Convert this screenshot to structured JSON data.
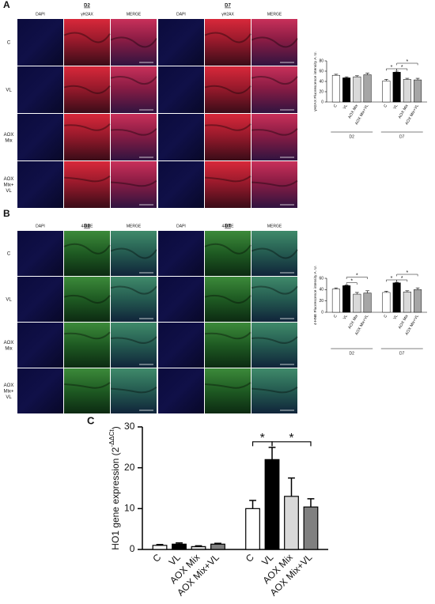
{
  "panels": [
    {
      "label": "A",
      "groups": [
        {
          "title": "D2",
          "columns": [
            "DAPI",
            "γH2AX",
            "MERGE"
          ]
        },
        {
          "title": "D7",
          "columns": [
            "DAPI",
            "γH2AX",
            "MERGE"
          ]
        }
      ],
      "rows": [
        "C",
        "VL",
        "AOX Mix",
        "AOX Mix+ VL"
      ]
    },
    {
      "label": "B",
      "groups": [
        {
          "title": "D2",
          "columns": [
            "DAPI",
            "4-HNE",
            "MERGE"
          ]
        },
        {
          "title": "D7",
          "columns": [
            "DAPI",
            "4-HNE",
            "MERGE"
          ]
        }
      ],
      "rows": [
        "C",
        "VL",
        "AOX Mix",
        "AOX Mix+ VL"
      ]
    },
    {
      "label": "C"
    }
  ],
  "chart_data": [
    {
      "type": "bar",
      "ylabel": "γH2AX Fluorescence intensity A. U.",
      "categories": [
        "C",
        "VL",
        "AOX Mix",
        "AOX Mix+VL",
        "C",
        "VL",
        "AOX Mix",
        "AOX Mix+VL"
      ],
      "groups": [
        "D2",
        "D7"
      ],
      "values": [
        52,
        47,
        49,
        53,
        41,
        58,
        44,
        43
      ],
      "errors": [
        2,
        2,
        2,
        3,
        3,
        2,
        2,
        3
      ],
      "colors": [
        "#ffffff",
        "#000000",
        "#d9d9d9",
        "#a6a6a6",
        "#ffffff",
        "#000000",
        "#d9d9d9",
        "#a6a6a6"
      ],
      "ylim": [
        0,
        80
      ],
      "yticks": [
        0,
        20,
        40,
        60,
        80
      ],
      "annotations": [
        {
          "text": "*",
          "pair": [
            4,
            5
          ]
        },
        {
          "text": "*",
          "pair": [
            5,
            6
          ]
        },
        {
          "text": "*",
          "pair": [
            5,
            7
          ]
        }
      ]
    },
    {
      "type": "bar",
      "ylabel": "4-HNE Fluorescence intensity A. U.",
      "categories": [
        "C",
        "VL",
        "AOX Mix",
        "AOX Mix+VL",
        "C",
        "VL",
        "AOX Mix",
        "AOX Mix+VL"
      ],
      "groups": [
        "D2",
        "D7"
      ],
      "values": [
        41,
        47,
        32,
        34,
        35,
        52,
        36,
        40
      ],
      "errors": [
        2,
        1,
        3,
        4,
        2,
        1,
        2,
        3
      ],
      "colors": [
        "#ffffff",
        "#000000",
        "#d9d9d9",
        "#a6a6a6",
        "#ffffff",
        "#000000",
        "#d9d9d9",
        "#a6a6a6"
      ],
      "ylim": [
        0,
        60
      ],
      "yticks": [
        0,
        20,
        40,
        60
      ],
      "annotations": [
        {
          "text": "*",
          "pair": [
            1,
            2
          ]
        },
        {
          "text": "*",
          "pair": [
            1,
            3
          ]
        },
        {
          "text": "*",
          "pair": [
            4,
            5
          ]
        },
        {
          "text": "*",
          "pair": [
            5,
            6
          ]
        },
        {
          "text": "*",
          "pair": [
            5,
            7
          ]
        }
      ]
    },
    {
      "type": "bar",
      "ylabel": "HO1 gene expression (2",
      "ylabel_sup": "-ΔΔCt",
      "ylabel_end": ")",
      "categories": [
        "C",
        "VL",
        "AOX Mix",
        "AOX Mix+VL",
        "C",
        "VL",
        "AOX Mix",
        "AOX Mix+VL"
      ],
      "values": [
        1.0,
        1.3,
        0.7,
        1.3,
        10,
        22,
        13,
        10.4
      ],
      "errors": [
        0.2,
        0.3,
        0.2,
        0.2,
        2,
        3,
        4.5,
        2
      ],
      "colors": [
        "#ffffff",
        "#000000",
        "#d9d9d9",
        "#808080",
        "#ffffff",
        "#000000",
        "#d9d9d9",
        "#808080"
      ],
      "ylim": [
        0,
        30
      ],
      "yticks": [
        0,
        10,
        20,
        30
      ],
      "annotations": [
        {
          "text": "*",
          "pair": [
            4,
            5
          ]
        },
        {
          "text": "*",
          "pair": [
            5,
            7
          ]
        }
      ]
    }
  ]
}
